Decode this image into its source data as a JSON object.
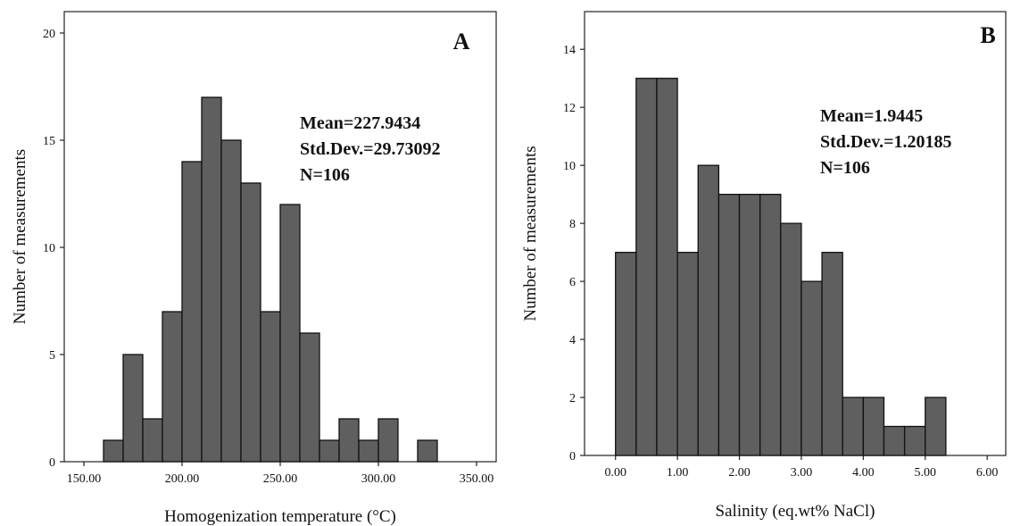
{
  "chart_data": [
    {
      "type": "bar",
      "panel_label": "A",
      "xlabel": "Homogenization  temperature (°C)",
      "ylabel": "Number of measurements",
      "xlim": [
        140,
        360
      ],
      "ylim": [
        0,
        21
      ],
      "xticks": [
        150,
        200,
        250,
        300,
        350
      ],
      "xtick_labels": [
        "150.00",
        "200.00",
        "250.00",
        "300.00",
        "350.00"
      ],
      "yticks": [
        0,
        5,
        10,
        15,
        20
      ],
      "ytick_labels": [
        "0",
        "5",
        "10",
        "15",
        "20"
      ],
      "bin_width": 10,
      "bin_starts": [
        160,
        170,
        180,
        190,
        200,
        210,
        220,
        230,
        240,
        250,
        260,
        270,
        280,
        290,
        300,
        310,
        320
      ],
      "values": [
        1,
        5,
        2,
        7,
        14,
        17,
        15,
        13,
        7,
        12,
        6,
        1,
        2,
        1,
        2,
        0,
        1
      ],
      "stats": [
        "Mean=227.9434",
        "Std.Dev.=29.73092",
        "N=106"
      ],
      "bar_color": "#5f5f5f",
      "grid": false
    },
    {
      "type": "bar",
      "panel_label": "B",
      "xlabel": "Salinity  (eq.wt% NaCl)",
      "ylabel": "Number of measurements",
      "xlim": [
        -0.5,
        6.3
      ],
      "ylim": [
        0,
        15.3
      ],
      "xticks": [
        0,
        1,
        2,
        3,
        4,
        5,
        6
      ],
      "xtick_labels": [
        "0.00",
        "1.00",
        "2.00",
        "3.00",
        "4.00",
        "5.00",
        "6.00"
      ],
      "yticks": [
        0,
        2,
        4,
        6,
        8,
        10,
        12,
        14
      ],
      "ytick_labels": [
        "0",
        "2",
        "4",
        "6",
        "8",
        "10",
        "12",
        "14"
      ],
      "bin_width": 0.3333,
      "bin_starts": [
        0,
        0.3333,
        0.6667,
        1,
        1.3333,
        1.6667,
        2,
        2.3333,
        2.6667,
        3,
        3.3333,
        3.6667,
        4,
        4.3333,
        4.6667,
        5
      ],
      "values": [
        7,
        13,
        13,
        7,
        10,
        9,
        9,
        9,
        8,
        6,
        7,
        2,
        2,
        1,
        1,
        2
      ],
      "stats": [
        "Mean=1.9445",
        "Std.Dev.=1.20185",
        "N=106"
      ],
      "bar_color": "#5f5f5f",
      "grid": false
    }
  ]
}
